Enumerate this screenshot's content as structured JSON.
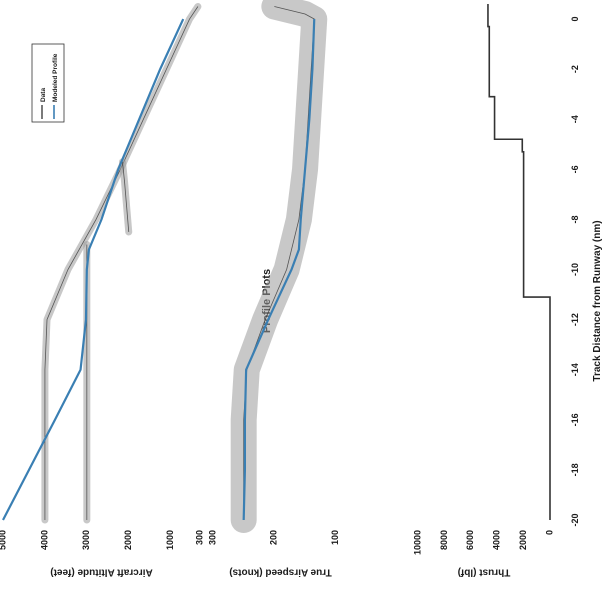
{
  "page": {
    "title": "Profile Plots",
    "xlabel": "Track Distance from Runway (nm)"
  },
  "legend": {
    "items": [
      "Data",
      "Modeled Profile"
    ]
  },
  "colors": {
    "model": "#3a7fb3",
    "data_band": "#9a9a9a",
    "data_line": "#222222",
    "thrust": "#333333"
  },
  "chart_data": [
    {
      "type": "line",
      "ylabel": "Aircraft Altitude (feet)",
      "x_ticks": [
        "-20",
        "-18",
        "-16",
        "-14",
        "-12",
        "-10",
        "-8",
        "-6",
        "-4",
        "-2",
        "0"
      ],
      "y_ticks": [
        "5000",
        "4000",
        "3000",
        "2000",
        "1000",
        "300"
      ],
      "xlim": [
        -20,
        0.6
      ],
      "ylim": [
        300,
        5000
      ],
      "grid": false,
      "legend_position": "top-right",
      "series": [
        {
          "name": "Modeled Profile",
          "x": [
            -20,
            -18,
            -16,
            -14,
            -12,
            -10,
            -9.2,
            -8,
            -6,
            -4,
            -2,
            0
          ],
          "y": [
            5000,
            4380,
            3760,
            3150,
            3020,
            3000,
            2950,
            2650,
            2250,
            1750,
            1250,
            700
          ]
        },
        {
          "name": "Data",
          "x": [
            -20,
            -18,
            -16,
            -14,
            -12,
            -10,
            -8,
            -6,
            -4,
            -2,
            0,
            0.5
          ],
          "y": [
            4000,
            4000,
            4000,
            4000,
            3950,
            3450,
            2780,
            2200,
            1650,
            1100,
            550,
            350
          ]
        },
        {
          "name": "Data",
          "x": [
            -20,
            -18,
            -16,
            -14,
            -12,
            -10,
            -9
          ],
          "y": [
            3000,
            3000,
            3000,
            3000,
            3000,
            3000,
            3000
          ]
        },
        {
          "name": "Data",
          "x": [
            -8.5,
            -7.5,
            -6.5,
            -5.7
          ],
          "y": [
            2000,
            2050,
            2100,
            2150
          ]
        }
      ]
    },
    {
      "type": "line",
      "ylabel": "True Airspeed (knots)",
      "y_ticks": [
        "300",
        "200",
        "100"
      ],
      "xlim": [
        -20,
        0.6
      ],
      "ylim": [
        80,
        300
      ],
      "grid": false,
      "series": [
        {
          "name": "Modeled Profile",
          "x": [
            -20,
            -18,
            -16,
            -14,
            -12,
            -10,
            -9.2,
            -8,
            -6,
            -4,
            -2,
            0
          ],
          "y": [
            250,
            248,
            248,
            246,
            210,
            172,
            160,
            157,
            150,
            143,
            138,
            135
          ]
        },
        {
          "name": "Data",
          "x": [
            -20,
            -16,
            -14,
            -12,
            -10,
            -8,
            -6,
            -4,
            -2,
            0,
            0.2,
            0.5
          ],
          "y": [
            250,
            250,
            245,
            215,
            180,
            160,
            150,
            145,
            140,
            135,
            150,
            200
          ]
        }
      ]
    },
    {
      "type": "line",
      "ylabel": "Thrust (lbf)",
      "y_ticks": [
        "10000",
        "8000",
        "6000",
        "4000",
        "2000",
        "0"
      ],
      "xlim": [
        -20,
        0.6
      ],
      "ylim": [
        0,
        10000
      ],
      "grid": false,
      "series": [
        {
          "name": "Modeled Profile",
          "x": [
            -20,
            -11.1,
            -11.1,
            -5.3,
            -5.3,
            -4.8,
            -4.8,
            -3.1,
            -3.1,
            -0.3,
            -0.3,
            0.6
          ],
          "y": [
            0,
            0,
            2000,
            2000,
            2100,
            2100,
            4200,
            4200,
            4600,
            4600,
            4700,
            4700
          ]
        }
      ]
    }
  ]
}
